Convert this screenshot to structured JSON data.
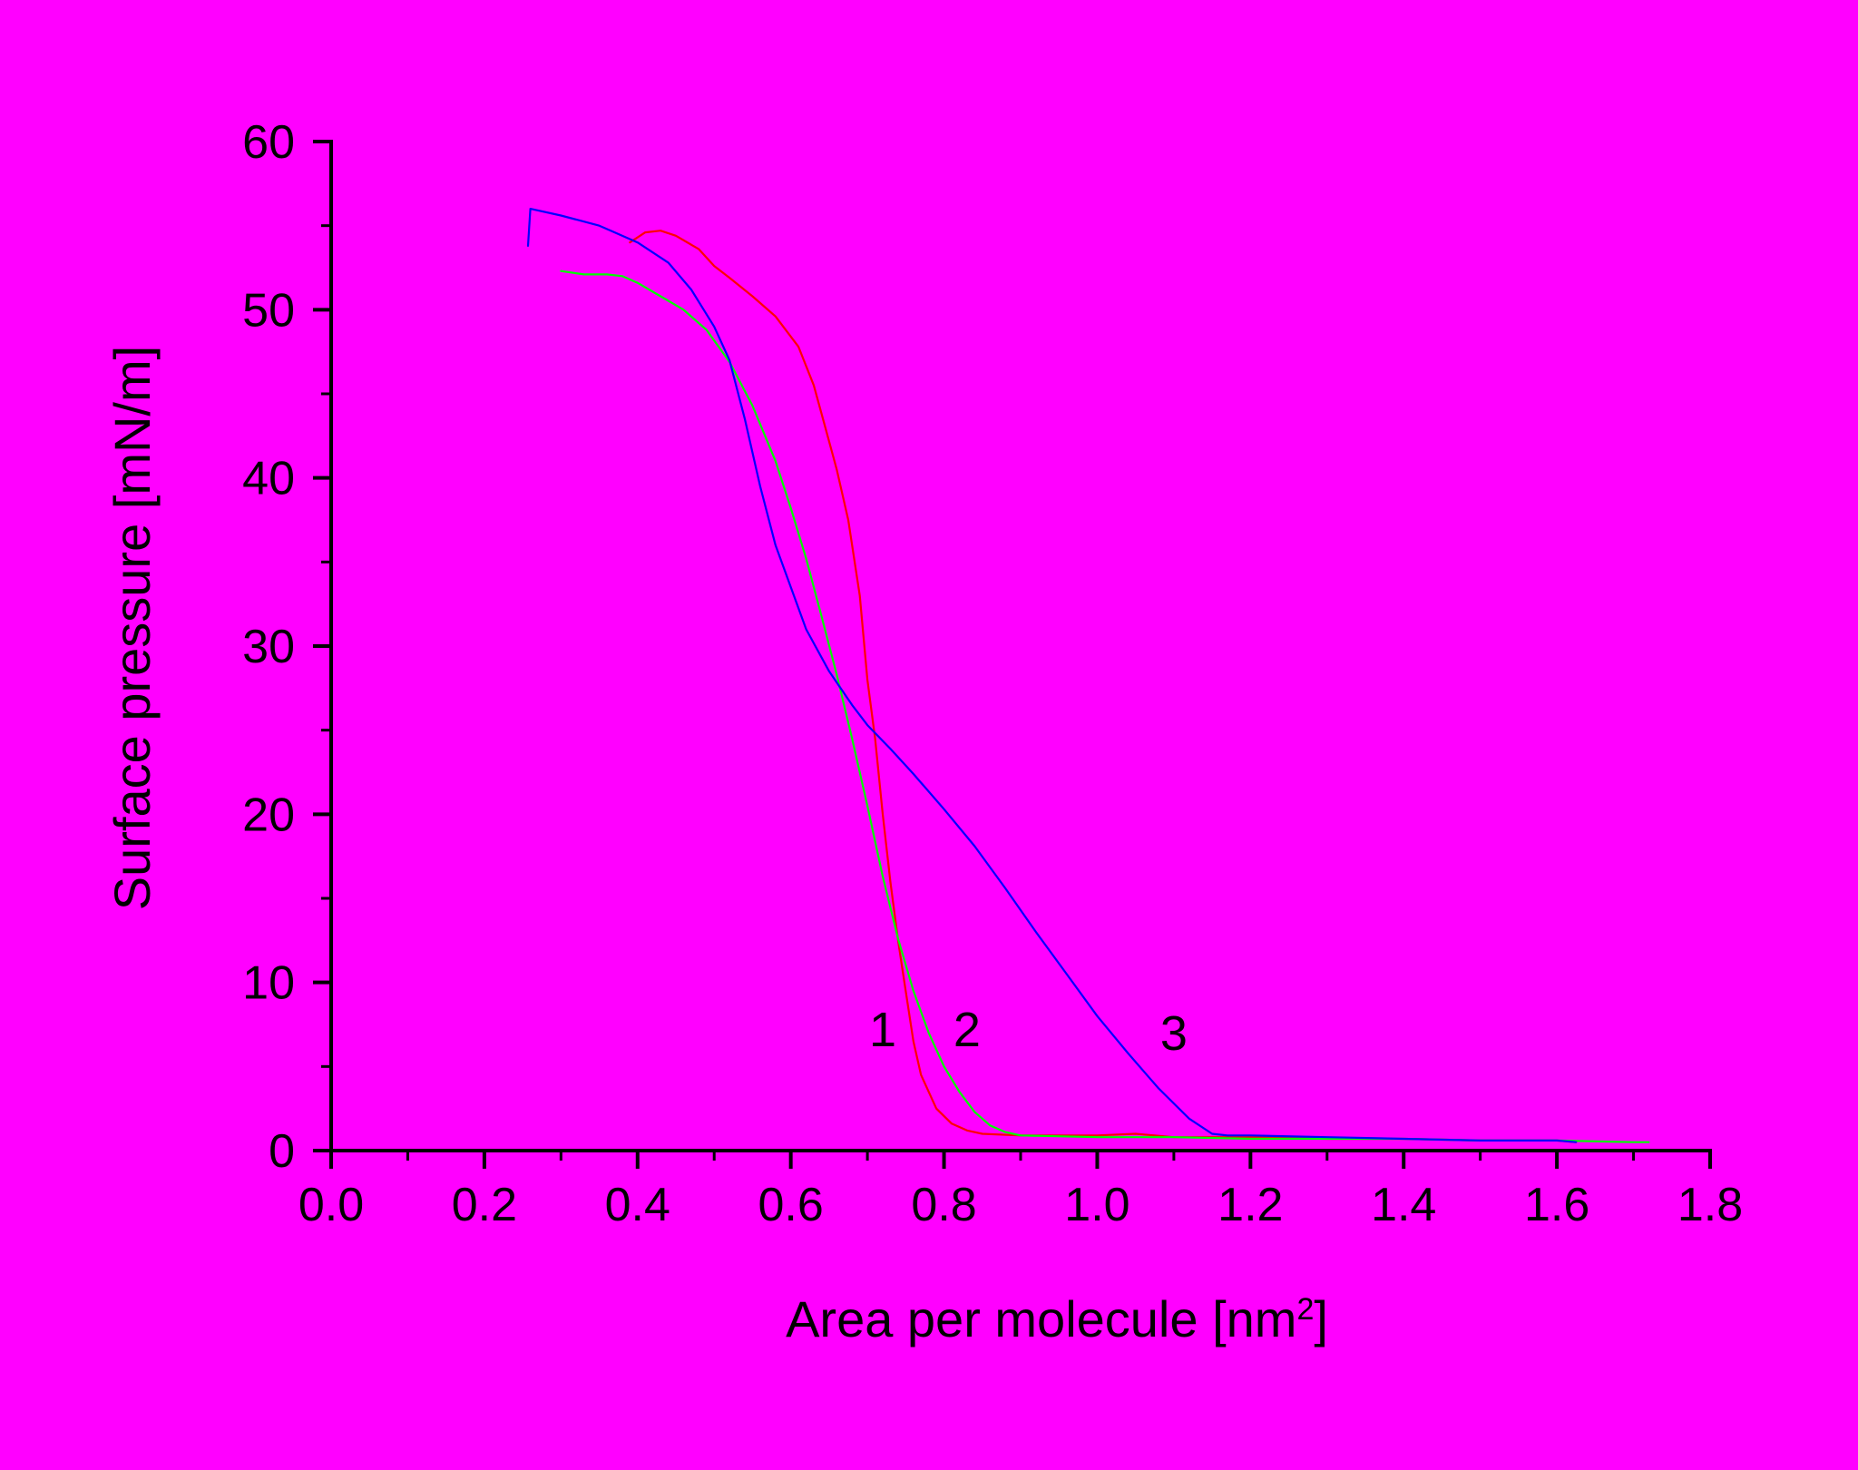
{
  "chart_data": {
    "type": "line",
    "title": "",
    "xlabel": "Area per molecule [nm",
    "xlabel_sup": "2",
    "xlabel_end": "]",
    "ylabel": "Surface pressure  [mN/m]",
    "xlim": [
      0.0,
      1.8
    ],
    "ylim": [
      0,
      60
    ],
    "xticks": [
      "0.0",
      "0.2",
      "0.4",
      "0.6",
      "0.8",
      "1.0",
      "1.2",
      "1.4",
      "1.6",
      "1.8"
    ],
    "yticks": [
      "0",
      "10",
      "20",
      "30",
      "40",
      "50",
      "60"
    ],
    "grid": false,
    "legend": "none",
    "series": [
      {
        "label": "1",
        "color": "#FF0000",
        "label_at": [
          0.72,
          6.2
        ],
        "x": [
          0.39,
          0.41,
          0.43,
          0.45,
          0.48,
          0.5,
          0.52,
          0.55,
          0.58,
          0.61,
          0.63,
          0.645,
          0.66,
          0.675,
          0.69,
          0.7,
          0.71,
          0.72,
          0.73,
          0.74,
          0.75,
          0.76,
          0.77,
          0.79,
          0.81,
          0.83,
          0.85,
          0.9,
          1.0,
          1.05,
          1.1,
          1.2,
          1.3,
          1.4,
          1.5,
          1.6,
          1.625
        ],
        "y": [
          54.0,
          54.6,
          54.7,
          54.4,
          53.6,
          52.6,
          51.9,
          50.8,
          49.6,
          47.8,
          45.5,
          43.0,
          40.5,
          37.5,
          33.0,
          28.0,
          24.5,
          20.0,
          16.0,
          12.5,
          9.5,
          6.5,
          4.5,
          2.5,
          1.6,
          1.2,
          1.0,
          0.9,
          0.9,
          1.0,
          0.8,
          0.8,
          0.7,
          0.7,
          0.6,
          0.6,
          0.5
        ]
      },
      {
        "label": "2",
        "color": "#00FF00",
        "label_at": [
          0.83,
          6.2
        ],
        "x": [
          0.3,
          0.33,
          0.36,
          0.38,
          0.4,
          0.43,
          0.46,
          0.49,
          0.52,
          0.55,
          0.58,
          0.6,
          0.62,
          0.64,
          0.66,
          0.68,
          0.7,
          0.72,
          0.74,
          0.76,
          0.78,
          0.8,
          0.82,
          0.84,
          0.86,
          0.88,
          0.9,
          1.0,
          1.1,
          1.2,
          1.3,
          1.4,
          1.5,
          1.6,
          1.7,
          1.72
        ],
        "y": [
          52.3,
          52.1,
          52.1,
          52.0,
          51.6,
          50.8,
          50.0,
          48.8,
          46.9,
          44.3,
          41.0,
          38.2,
          35.2,
          31.8,
          28.3,
          24.5,
          20.5,
          16.3,
          12.6,
          9.5,
          7.0,
          5.0,
          3.5,
          2.3,
          1.5,
          1.1,
          0.9,
          0.8,
          0.8,
          0.7,
          0.7,
          0.7,
          0.6,
          0.6,
          0.5,
          0.5
        ]
      },
      {
        "label": "3",
        "color": "#0000FF",
        "label_at": [
          1.1,
          6.0
        ],
        "x": [
          0.257,
          0.26,
          0.3,
          0.35,
          0.4,
          0.44,
          0.47,
          0.5,
          0.52,
          0.54,
          0.56,
          0.58,
          0.6,
          0.62,
          0.65,
          0.68,
          0.7,
          0.73,
          0.76,
          0.8,
          0.84,
          0.88,
          0.92,
          0.96,
          1.0,
          1.04,
          1.08,
          1.12,
          1.15,
          1.17,
          1.2,
          1.3,
          1.4,
          1.5,
          1.6,
          1.625
        ],
        "y": [
          53.8,
          56.0,
          55.6,
          55.0,
          54.0,
          52.8,
          51.2,
          49.0,
          47.0,
          43.5,
          39.5,
          36.0,
          33.5,
          31.0,
          28.5,
          26.5,
          25.3,
          23.9,
          22.4,
          20.3,
          18.1,
          15.6,
          13.0,
          10.5,
          8.0,
          5.8,
          3.7,
          1.9,
          1.0,
          0.9,
          0.9,
          0.8,
          0.7,
          0.6,
          0.6,
          0.5
        ]
      }
    ]
  }
}
